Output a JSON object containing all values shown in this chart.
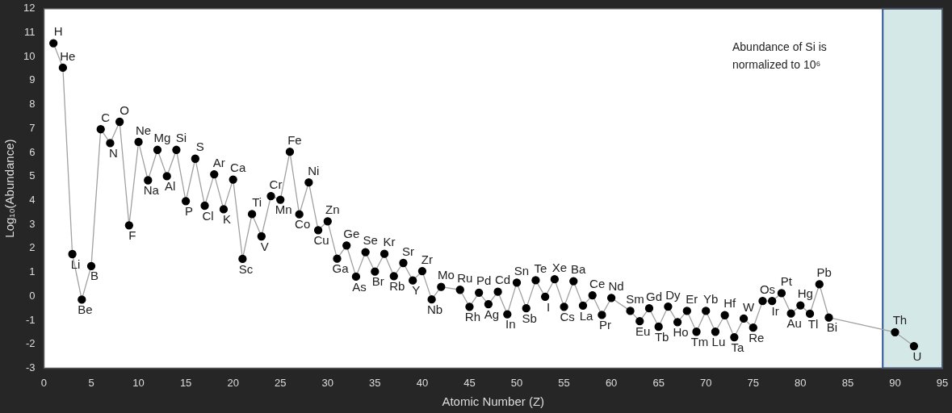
{
  "chart_data": {
    "type": "line",
    "xlabel": "Atomic Number (Z)",
    "ylabel": "Log₁₀(Abundance)",
    "x": [
      1,
      2,
      3,
      4,
      5,
      6,
      7,
      8,
      9,
      10,
      11,
      12,
      13,
      14,
      15,
      16,
      17,
      18,
      19,
      20,
      21,
      22,
      23,
      24,
      25,
      26,
      27,
      28,
      29,
      30,
      31,
      32,
      33,
      34,
      35,
      36,
      37,
      38,
      39,
      40,
      41,
      42,
      44,
      45,
      46,
      47,
      48,
      49,
      50,
      51,
      52,
      53,
      54,
      55,
      56,
      57,
      58,
      59,
      60,
      62,
      63,
      64,
      65,
      66,
      67,
      68,
      69,
      70,
      71,
      72,
      73,
      74,
      75,
      76,
      77,
      78,
      79,
      80,
      81,
      82,
      83,
      90,
      92
    ],
    "series": [
      {
        "color": "#a0a0a0",
        "values": [
          10.56,
          9.54,
          1.76,
          -0.14,
          1.26,
          6.97,
          6.39,
          7.28,
          2.96,
          6.44,
          4.84,
          6.11,
          5.01,
          6.11,
          3.97,
          5.74,
          3.78,
          5.09,
          3.63,
          4.87,
          1.56,
          3.43,
          2.5,
          4.18,
          4.03,
          6.03,
          3.42,
          4.75,
          2.76,
          3.13,
          1.57,
          2.12,
          0.82,
          1.84,
          1.03,
          1.77,
          0.84,
          1.39,
          0.66,
          1.05,
          -0.13,
          0.39,
          0.27,
          -0.44,
          0.15,
          -0.33,
          0.19,
          -0.75,
          0.57,
          -0.5,
          0.67,
          -0.02,
          0.71,
          -0.44,
          0.63,
          -0.39,
          0.04,
          -0.78,
          -0.07,
          -0.61,
          -1.04,
          -0.5,
          -1.27,
          -0.43,
          -1.08,
          -0.61,
          -1.48,
          -0.61,
          -1.48,
          -0.79,
          -1.71,
          -0.93,
          -1.31,
          -0.2,
          -0.2,
          0.13,
          -0.72,
          -0.38,
          -0.73,
          0.5,
          -0.89,
          -1.5,
          -2.08
        ]
      }
    ],
    "xlim": [
      0,
      95
    ],
    "xticks": [
      0,
      5,
      10,
      15,
      20,
      25,
      30,
      35,
      40,
      45,
      50,
      55,
      60,
      65,
      70,
      75,
      80,
      85,
      90,
      95
    ],
    "ylim": [
      -3,
      12
    ],
    "yticks": [
      -3,
      -2,
      -1,
      0,
      1,
      2,
      3,
      4,
      5,
      6,
      7,
      8,
      9,
      10,
      11,
      12
    ],
    "grid": false,
    "legend": false,
    "marker": "circle",
    "line_style": "solid",
    "bands": [
      {
        "axis": "x",
        "from": 88.7,
        "to": 95,
        "color": "#d5e8e8"
      }
    ],
    "annotations": [
      "Abundance of Si is normalized to 10⁶",
      {
        "text": "H",
        "x": 1,
        "y": 10.56
      },
      {
        "text": "He",
        "x": 2,
        "y": 9.54
      },
      {
        "text": "Li",
        "x": 3,
        "y": 1.76
      },
      {
        "text": "Be",
        "x": 4,
        "y": -0.14
      },
      {
        "text": "B",
        "x": 5,
        "y": 1.26
      },
      {
        "text": "C",
        "x": 6,
        "y": 6.97
      },
      {
        "text": "N",
        "x": 7,
        "y": 6.39
      },
      {
        "text": "O",
        "x": 8,
        "y": 7.28
      },
      {
        "text": "F",
        "x": 9,
        "y": 2.96
      },
      {
        "text": "Ne",
        "x": 10,
        "y": 6.44
      },
      {
        "text": "Na",
        "x": 11,
        "y": 4.84
      },
      {
        "text": "Mg",
        "x": 12,
        "y": 6.11
      },
      {
        "text": "Al",
        "x": 13,
        "y": 5.01
      },
      {
        "text": "Si",
        "x": 14,
        "y": 6.11
      },
      {
        "text": "P",
        "x": 15,
        "y": 3.97
      },
      {
        "text": "S",
        "x": 16,
        "y": 5.74
      },
      {
        "text": "Cl",
        "x": 17,
        "y": 3.78
      },
      {
        "text": "Ar",
        "x": 18,
        "y": 5.09
      },
      {
        "text": "K",
        "x": 19,
        "y": 3.63
      },
      {
        "text": "Ca",
        "x": 20,
        "y": 4.87
      },
      {
        "text": "Sc",
        "x": 21,
        "y": 1.56
      },
      {
        "text": "Ti",
        "x": 22,
        "y": 3.43
      },
      {
        "text": "V",
        "x": 23,
        "y": 2.5
      },
      {
        "text": "Cr",
        "x": 24,
        "y": 4.18
      },
      {
        "text": "Mn",
        "x": 25,
        "y": 4.03
      },
      {
        "text": "Fe",
        "x": 26,
        "y": 6.03
      },
      {
        "text": "Co",
        "x": 27,
        "y": 3.42
      },
      {
        "text": "Ni",
        "x": 28,
        "y": 4.75
      },
      {
        "text": "Cu",
        "x": 29,
        "y": 2.76
      },
      {
        "text": "Zn",
        "x": 30,
        "y": 3.13
      },
      {
        "text": "Ga",
        "x": 31,
        "y": 1.57
      },
      {
        "text": "Ge",
        "x": 32,
        "y": 2.12
      },
      {
        "text": "As",
        "x": 33,
        "y": 0.82
      },
      {
        "text": "Se",
        "x": 34,
        "y": 1.84
      },
      {
        "text": "Br",
        "x": 35,
        "y": 1.03
      },
      {
        "text": "Kr",
        "x": 36,
        "y": 1.77
      },
      {
        "text": "Rb",
        "x": 37,
        "y": 0.84
      },
      {
        "text": "Sr",
        "x": 38,
        "y": 1.39
      },
      {
        "text": "Y",
        "x": 39,
        "y": 0.66
      },
      {
        "text": "Zr",
        "x": 40,
        "y": 1.05
      },
      {
        "text": "Nb",
        "x": 41,
        "y": -0.13
      },
      {
        "text": "Mo",
        "x": 42,
        "y": 0.39
      },
      {
        "text": "Ru",
        "x": 44,
        "y": 0.27
      },
      {
        "text": "Rh",
        "x": 45,
        "y": -0.44
      },
      {
        "text": "Pd",
        "x": 46,
        "y": 0.15
      },
      {
        "text": "Ag",
        "x": 47,
        "y": -0.33
      },
      {
        "text": "Cd",
        "x": 48,
        "y": 0.19
      },
      {
        "text": "In",
        "x": 49,
        "y": -0.75
      },
      {
        "text": "Sn",
        "x": 50,
        "y": 0.57
      },
      {
        "text": "Sb",
        "x": 51,
        "y": -0.5
      },
      {
        "text": "Te",
        "x": 52,
        "y": 0.67
      },
      {
        "text": "I",
        "x": 53,
        "y": -0.02
      },
      {
        "text": "Xe",
        "x": 54,
        "y": 0.71
      },
      {
        "text": "Cs",
        "x": 55,
        "y": -0.44
      },
      {
        "text": "Ba",
        "x": 56,
        "y": 0.63
      },
      {
        "text": "La",
        "x": 57,
        "y": -0.39
      },
      {
        "text": "Ce",
        "x": 58,
        "y": 0.04
      },
      {
        "text": "Pr",
        "x": 59,
        "y": -0.78
      },
      {
        "text": "Nd",
        "x": 60,
        "y": -0.07
      },
      {
        "text": "Sm",
        "x": 62,
        "y": -0.61
      },
      {
        "text": "Eu",
        "x": 63,
        "y": -1.04
      },
      {
        "text": "Gd",
        "x": 64,
        "y": -0.5
      },
      {
        "text": "Tb",
        "x": 65,
        "y": -1.27
      },
      {
        "text": "Dy",
        "x": 66,
        "y": -0.43
      },
      {
        "text": "Ho",
        "x": 67,
        "y": -1.08
      },
      {
        "text": "Er",
        "x": 68,
        "y": -0.61
      },
      {
        "text": "Tm",
        "x": 69,
        "y": -1.48
      },
      {
        "text": "Yb",
        "x": 70,
        "y": -0.61
      },
      {
        "text": "Lu",
        "x": 71,
        "y": -1.48
      },
      {
        "text": "Hf",
        "x": 72,
        "y": -0.79
      },
      {
        "text": "Ta",
        "x": 73,
        "y": -1.71
      },
      {
        "text": "W",
        "x": 74,
        "y": -0.93
      },
      {
        "text": "Re",
        "x": 75,
        "y": -1.31
      },
      {
        "text": "Os",
        "x": 76,
        "y": -0.2
      },
      {
        "text": "Ir",
        "x": 77,
        "y": -0.2
      },
      {
        "text": "Pt",
        "x": 78,
        "y": 0.13
      },
      {
        "text": "Au",
        "x": 79,
        "y": -0.72
      },
      {
        "text": "Hg",
        "x": 80,
        "y": -0.38
      },
      {
        "text": "Tl",
        "x": 81,
        "y": -0.73
      },
      {
        "text": "Pb",
        "x": 82,
        "y": 0.5
      },
      {
        "text": "Bi",
        "x": 83,
        "y": -0.89
      },
      {
        "text": "Th",
        "x": 90,
        "y": -1.5
      },
      {
        "text": "U",
        "x": 92,
        "y": -2.08
      }
    ]
  }
}
